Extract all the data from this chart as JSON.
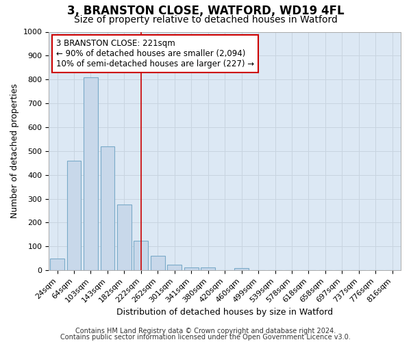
{
  "title": "3, BRANSTON CLOSE, WATFORD, WD19 4FL",
  "subtitle": "Size of property relative to detached houses in Watford",
  "xlabel": "Distribution of detached houses by size in Watford",
  "ylabel": "Number of detached properties",
  "bar_labels": [
    "24sqm",
    "64sqm",
    "103sqm",
    "143sqm",
    "182sqm",
    "222sqm",
    "262sqm",
    "301sqm",
    "341sqm",
    "380sqm",
    "420sqm",
    "460sqm",
    "499sqm",
    "539sqm",
    "578sqm",
    "618sqm",
    "658sqm",
    "697sqm",
    "737sqm",
    "776sqm",
    "816sqm"
  ],
  "bar_values": [
    50,
    460,
    810,
    520,
    275,
    125,
    60,
    25,
    12,
    12,
    0,
    10,
    0,
    0,
    0,
    0,
    0,
    0,
    0,
    0,
    0
  ],
  "bar_color": "#c8d8ea",
  "bar_edge_color": "#7aaac8",
  "vline_x_index": 5,
  "vline_color": "#cc0000",
  "annotation_line1": "3 BRANSTON CLOSE: 221sqm",
  "annotation_line2": "← 90% of detached houses are smaller (2,094)",
  "annotation_line3": "10% of semi-detached houses are larger (227) →",
  "annotation_box_color": "#cc0000",
  "annotation_box_bg": "#ffffff",
  "ylim": [
    0,
    1000
  ],
  "grid_color": "#c8d4e0",
  "plot_bg_color": "#dce8f4",
  "figure_bg_color": "#ffffff",
  "footer_line1": "Contains HM Land Registry data © Crown copyright and database right 2024.",
  "footer_line2": "Contains public sector information licensed under the Open Government Licence v3.0.",
  "title_fontsize": 12,
  "subtitle_fontsize": 10,
  "footer_fontsize": 7,
  "ylabel_fontsize": 9,
  "xlabel_fontsize": 9,
  "tick_fontsize": 8,
  "annot_fontsize": 8.5
}
